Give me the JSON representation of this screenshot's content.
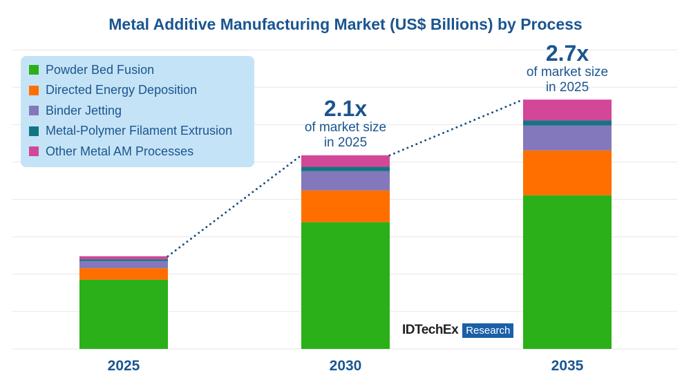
{
  "chart_data": {
    "type": "bar",
    "stacked": true,
    "title": "Metal Additive Manufacturing Market (US$ Billions) by Process",
    "categories": [
      "2025",
      "2030",
      "2035"
    ],
    "ylim": [
      0,
      8
    ],
    "y_units_note": "",
    "grid": true,
    "legend_position": "top-left",
    "series": [
      {
        "name": "Powder Bed Fusion",
        "color": "#2bb019",
        "values": [
          1.85,
          3.39,
          4.11
        ]
      },
      {
        "name": "Directed Energy Deposition",
        "color": "#ff6f00",
        "values": [
          0.31,
          0.85,
          1.2
        ]
      },
      {
        "name": "Binder Jetting",
        "color": "#8378bb",
        "values": [
          0.19,
          0.52,
          0.67
        ]
      },
      {
        "name": "Metal-Polymer Filament Extrusion",
        "color": "#117680",
        "values": [
          0.05,
          0.11,
          0.13
        ]
      },
      {
        "name": "Other Metal AM Processes",
        "color": "#d24798",
        "values": [
          0.08,
          0.31,
          0.56
        ]
      }
    ],
    "annotations": [
      {
        "category": "2030",
        "big": "2.1x",
        "line1": "of market size",
        "line2": "in 2025"
      },
      {
        "category": "2035",
        "big": "2.7x",
        "line1": "of market size",
        "line2": "in 2025"
      }
    ]
  },
  "logo": {
    "name": "IDTechEx",
    "tag": "Research"
  },
  "colors": {
    "text": "#1a5590",
    "legend_bg": "#c5e3f6",
    "grid": "#e6e6e6",
    "trend_line": "#1a4f80"
  }
}
